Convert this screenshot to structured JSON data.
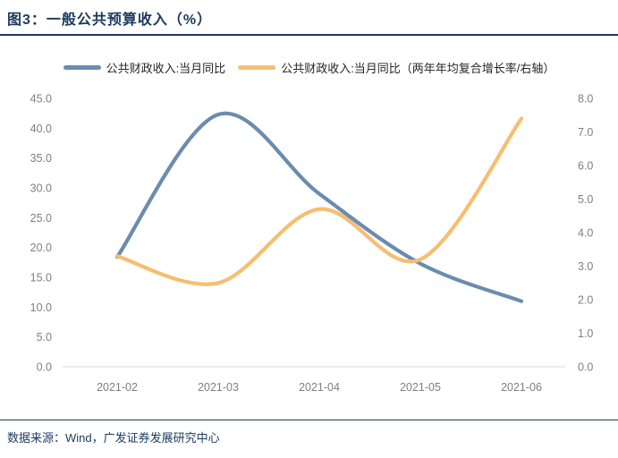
{
  "title": "图3：一般公共预算收入（%）",
  "source": "数据来源：Wind，广发证券发展研究中心",
  "colors": {
    "navy": "#1B3A5F",
    "blue_line": "#6A8CAF",
    "orange_line": "#F5BE71",
    "axis_text": "#7F7F7F",
    "axis_line": "#D9D9D9"
  },
  "chart_data": {
    "type": "line",
    "title": "一般公共预算收入（%）",
    "categories": [
      "2021-02",
      "2021-03",
      "2021-04",
      "2021-05",
      "2021-06"
    ],
    "series": [
      {
        "name": "公共财政收入:当月同比",
        "axis": "left",
        "color": "#6A8CAF",
        "values": [
          18.4,
          42.3,
          29.0,
          17.3,
          11.0
        ]
      },
      {
        "name": "公共财政收入:当月同比（两年年均复合增长率/右轴）",
        "axis": "right",
        "color": "#F5BE71",
        "values": [
          3.3,
          2.5,
          4.7,
          3.2,
          7.4
        ]
      }
    ],
    "left_axis": {
      "min": 0,
      "max": 45,
      "step": 5,
      "decimals": 1
    },
    "right_axis": {
      "min": 0,
      "max": 8,
      "step": 1,
      "decimals": 1
    },
    "legend_position": "top",
    "grid": false,
    "smooth": true
  }
}
